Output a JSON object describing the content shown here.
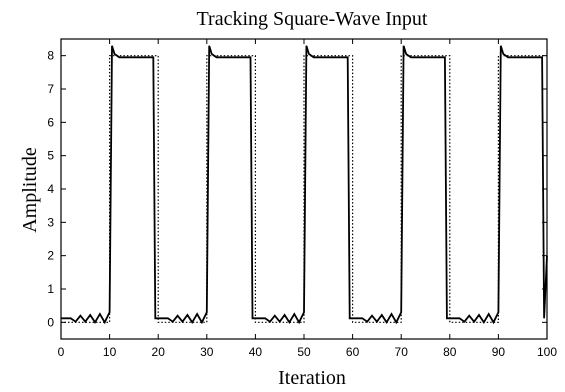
{
  "chart_data": {
    "type": "line",
    "title": "Tracking Square-Wave Input",
    "xlabel": "Iteration",
    "ylabel": "Amplitude",
    "xlim": [
      0,
      100
    ],
    "ylim": [
      -0.5,
      8.5
    ],
    "xticks": [
      "0",
      "10",
      "20",
      "30",
      "40",
      "50",
      "60",
      "70",
      "80",
      "90",
      "100"
    ],
    "yticks": [
      "0",
      "1",
      "2",
      "3",
      "4",
      "5",
      "6",
      "7",
      "8"
    ],
    "grid": false,
    "legend": "none",
    "series": [
      {
        "style": "solid",
        "x": [
          0,
          2,
          3,
          4,
          5,
          6,
          7,
          8,
          9,
          10,
          10.5,
          11,
          12,
          19,
          19.4,
          20,
          21,
          22,
          23,
          24,
          25,
          26,
          27,
          28,
          29,
          30,
          30.5,
          31,
          32,
          39,
          39.4,
          40,
          41,
          42,
          43,
          44,
          45,
          46,
          47,
          48,
          49,
          50,
          50.5,
          51,
          52,
          59,
          59.4,
          60,
          61,
          62,
          63,
          64,
          65,
          66,
          67,
          68,
          69,
          70,
          70.5,
          71,
          72,
          79,
          79.4,
          80,
          81,
          82,
          83,
          84,
          85,
          86,
          87,
          88,
          89,
          90,
          90.5,
          91,
          92,
          99,
          99.4,
          100
        ],
        "y": [
          0.12,
          0.12,
          0.02,
          0.2,
          0.02,
          0.22,
          0.0,
          0.25,
          0.0,
          0.3,
          8.3,
          8.05,
          7.95,
          7.95,
          0.12,
          0.12,
          0.12,
          0.12,
          0.02,
          0.2,
          0.02,
          0.22,
          0.0,
          0.25,
          0.0,
          0.3,
          8.3,
          8.05,
          7.95,
          7.95,
          0.12,
          0.12,
          0.12,
          0.12,
          0.02,
          0.2,
          0.02,
          0.22,
          0.0,
          0.25,
          0.0,
          0.3,
          8.3,
          8.05,
          7.95,
          7.95,
          0.12,
          0.12,
          0.12,
          0.12,
          0.02,
          0.2,
          0.02,
          0.22,
          0.0,
          0.25,
          0.0,
          0.3,
          8.3,
          8.05,
          7.95,
          7.95,
          0.12,
          0.12,
          0.12,
          0.12,
          0.02,
          0.2,
          0.02,
          0.22,
          0.0,
          0.25,
          0.0,
          0.3,
          8.3,
          8.05,
          7.95,
          7.95,
          0.12,
          2.0
        ]
      },
      {
        "style": "dotted",
        "x": [
          0,
          10,
          10,
          20,
          20,
          30,
          30,
          40,
          40,
          50,
          50,
          60,
          60,
          70,
          70,
          80,
          80,
          90,
          90,
          100
        ],
        "y": [
          0,
          0,
          8,
          8,
          0,
          0,
          8,
          8,
          0,
          0,
          8,
          8,
          0,
          0,
          8,
          8,
          0,
          0,
          8,
          8
        ]
      }
    ]
  }
}
